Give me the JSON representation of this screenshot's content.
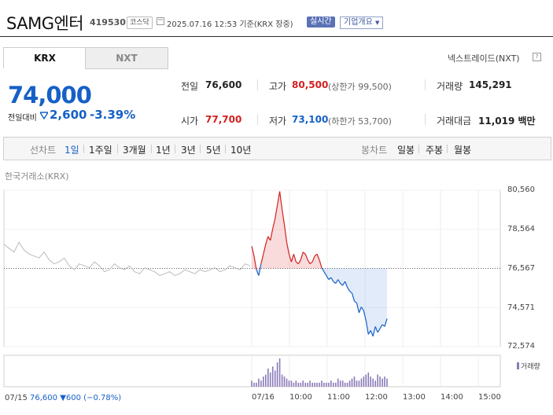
{
  "header": {
    "stock_name": "SAMG엔터",
    "stock_code": "419530",
    "market_tag": "코스닥",
    "timestamp": "2025.07.16 12:53 기준(KRX 장중)",
    "realtime_badge": "실시간",
    "company_info_label": "기업개요"
  },
  "market_tabs": [
    {
      "label": "KRX",
      "selected": true
    },
    {
      "label": "NXT",
      "selected": false
    }
  ],
  "nextrade_link": "넥스트레이드(NXT)",
  "nextrade_help": "?",
  "price": {
    "current": "74,000",
    "change_label": "전일대비",
    "change_amount": "2,600",
    "change_rate": "-3.39%"
  },
  "quote": {
    "prev_close_label": "전일",
    "prev_close": "76,600",
    "high_label": "고가",
    "high": "80,500",
    "upper_limit": "(상한가 99,500)",
    "volume_label": "거래량",
    "volume": "145,291",
    "open_label": "시가",
    "open": "77,700",
    "low_label": "저가",
    "low": "73,100",
    "lower_limit": "(하한가 53,700)",
    "trade_value_label": "거래대금",
    "trade_value": "11,019 백만"
  },
  "period_toolbar": {
    "line_chart_label": "선차트",
    "line_periods": [
      {
        "label": "1일",
        "active": true
      },
      {
        "label": "1주일",
        "active": false
      },
      {
        "label": "3개월",
        "active": false
      },
      {
        "label": "1년",
        "active": false
      },
      {
        "label": "3년",
        "active": false
      },
      {
        "label": "5년",
        "active": false
      },
      {
        "label": "10년",
        "active": false
      }
    ],
    "candle_chart_label": "봉차트",
    "candle_periods": [
      {
        "label": "일봉"
      },
      {
        "label": "주봉"
      },
      {
        "label": "월봉"
      }
    ]
  },
  "chart_source": "한국거래소(KRX)",
  "chart_data": {
    "type": "line",
    "x_tick_labels": [
      "07/16",
      "10:00",
      "11:00",
      "12:00",
      "13:00",
      "14:00",
      "15:00"
    ],
    "y_tick_labels": [
      "80,560",
      "78,564",
      "76,567",
      "74,571",
      "72,574"
    ],
    "ylim": [
      72574,
      80560
    ],
    "reference_line": 76567,
    "prev_day_series": [
      77800,
      77600,
      77400,
      77900,
      77500,
      77300,
      77200,
      77100,
      77400,
      77000,
      76800,
      76900,
      77100,
      76700,
      76500,
      76800,
      76700,
      76600,
      76900,
      76700,
      76400,
      76500,
      76800,
      76600,
      76500,
      76700,
      76400,
      76300,
      76600,
      76500,
      76400,
      76200,
      76300,
      76400,
      76200,
      76300,
      76500,
      76400,
      76300,
      76500,
      76400,
      76500,
      76600,
      76400,
      76500,
      76700,
      76600,
      76500,
      76800,
      76700
    ],
    "today_series": [
      77700,
      77200,
      76500,
      76200,
      76800,
      77300,
      77800,
      78200,
      78000,
      78600,
      79100,
      79800,
      80500,
      79600,
      78800,
      77900,
      77300,
      76900,
      77300,
      76900,
      76800,
      77000,
      77400,
      77300,
      77000,
      76800,
      76900,
      77200,
      77300,
      77000,
      76600,
      76400,
      76200,
      76000,
      76100,
      75900,
      75800,
      76000,
      75800,
      75700,
      75900,
      75600,
      75400,
      75300,
      74900,
      74800,
      74300,
      74600,
      74400,
      73900,
      73200,
      73400,
      73100,
      73600,
      73300,
      73500,
      73700,
      73600,
      74000
    ],
    "today_volume": [
      3,
      2,
      2,
      4,
      3,
      5,
      6,
      9,
      7,
      10,
      8,
      12,
      14,
      6,
      5,
      4,
      3,
      3,
      2,
      3,
      2,
      2,
      3,
      2,
      2,
      3,
      2,
      2,
      2,
      2,
      3,
      2,
      2,
      2,
      3,
      2,
      2,
      4,
      3,
      3,
      2,
      2,
      3,
      4,
      5,
      3,
      3,
      4,
      5,
      6,
      7,
      5,
      4,
      3,
      6,
      5,
      4,
      5,
      4
    ],
    "volume_legend": "거래량"
  },
  "footer": {
    "date": "07/15",
    "close": "76,600",
    "change": "▼600",
    "rate": "(−0.78%)"
  },
  "colors": {
    "up": "#d32020",
    "down": "#1660c7",
    "prev_day_line": "#bbbbbb",
    "volume_bar": "#8a7ab8"
  }
}
